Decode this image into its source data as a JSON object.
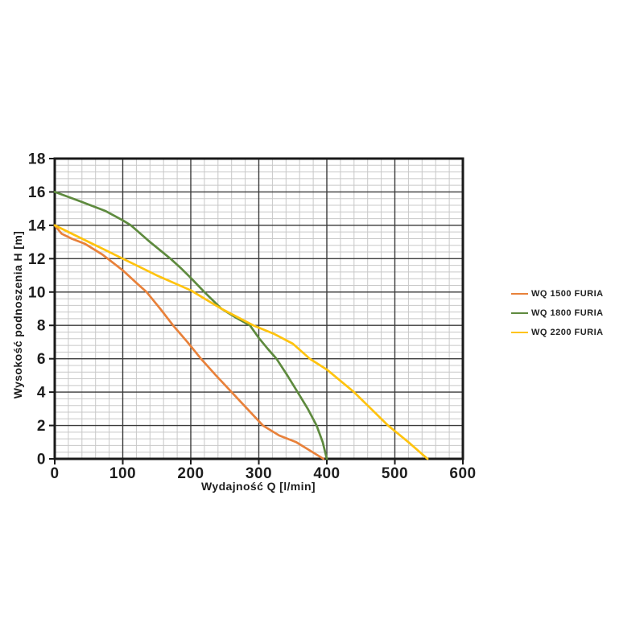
{
  "chart_data": {
    "type": "line",
    "title": "",
    "xlabel": "Wydajność Q [l/min]",
    "ylabel": "Wysokość podnoszenia H [m]",
    "xlim": [
      0,
      600
    ],
    "ylim": [
      0,
      18
    ],
    "x_major_ticks": [
      0,
      100,
      200,
      300,
      400,
      500,
      600
    ],
    "y_major_ticks": [
      0,
      2,
      4,
      6,
      8,
      10,
      12,
      14,
      16,
      18
    ],
    "x_minor_step": 20,
    "y_minor_step": 0.4,
    "grid": "major+minor",
    "legend_position": "right-outside",
    "series": [
      {
        "name": "WQ 1500 FURIA",
        "color": "#E8813A",
        "points": [
          [
            0,
            14
          ],
          [
            10,
            13.5
          ],
          [
            25,
            13.2
          ],
          [
            44,
            12.9
          ],
          [
            70,
            12.25
          ],
          [
            100,
            11.3
          ],
          [
            120,
            10.55
          ],
          [
            135,
            10
          ],
          [
            155,
            9
          ],
          [
            174,
            8
          ],
          [
            195,
            7
          ],
          [
            215,
            6
          ],
          [
            237,
            5
          ],
          [
            260,
            4
          ],
          [
            283,
            3
          ],
          [
            306,
            2
          ],
          [
            330,
            1.4
          ],
          [
            355,
            1.0
          ],
          [
            375,
            0.5
          ],
          [
            395,
            0
          ]
        ]
      },
      {
        "name": "WQ 1800 FURIA",
        "color": "#5E8A3E",
        "points": [
          [
            0,
            16
          ],
          [
            40,
            15.4
          ],
          [
            75,
            14.85
          ],
          [
            100,
            14.3
          ],
          [
            112,
            14
          ],
          [
            140,
            13
          ],
          [
            170,
            12
          ],
          [
            185,
            11.45
          ],
          [
            200,
            10.85
          ],
          [
            220,
            10
          ],
          [
            245,
            9
          ],
          [
            265,
            8.5
          ],
          [
            287,
            8
          ],
          [
            300,
            7.25
          ],
          [
            313,
            6.6
          ],
          [
            326,
            6
          ],
          [
            342,
            5
          ],
          [
            357,
            4
          ],
          [
            372,
            3
          ],
          [
            385,
            2
          ],
          [
            394,
            1
          ],
          [
            400,
            0
          ]
        ]
      },
      {
        "name": "WQ 2200 FURIA",
        "color": "#FFC30E",
        "points": [
          [
            0,
            14
          ],
          [
            50,
            13
          ],
          [
            100,
            12
          ],
          [
            150,
            11
          ],
          [
            200,
            10.1
          ],
          [
            245,
            9
          ],
          [
            292,
            8
          ],
          [
            322,
            7.5
          ],
          [
            350,
            6.9
          ],
          [
            375,
            6
          ],
          [
            400,
            5.35
          ],
          [
            440,
            4
          ],
          [
            465,
            3
          ],
          [
            490,
            2
          ],
          [
            520,
            1
          ],
          [
            548,
            0
          ]
        ]
      }
    ]
  }
}
